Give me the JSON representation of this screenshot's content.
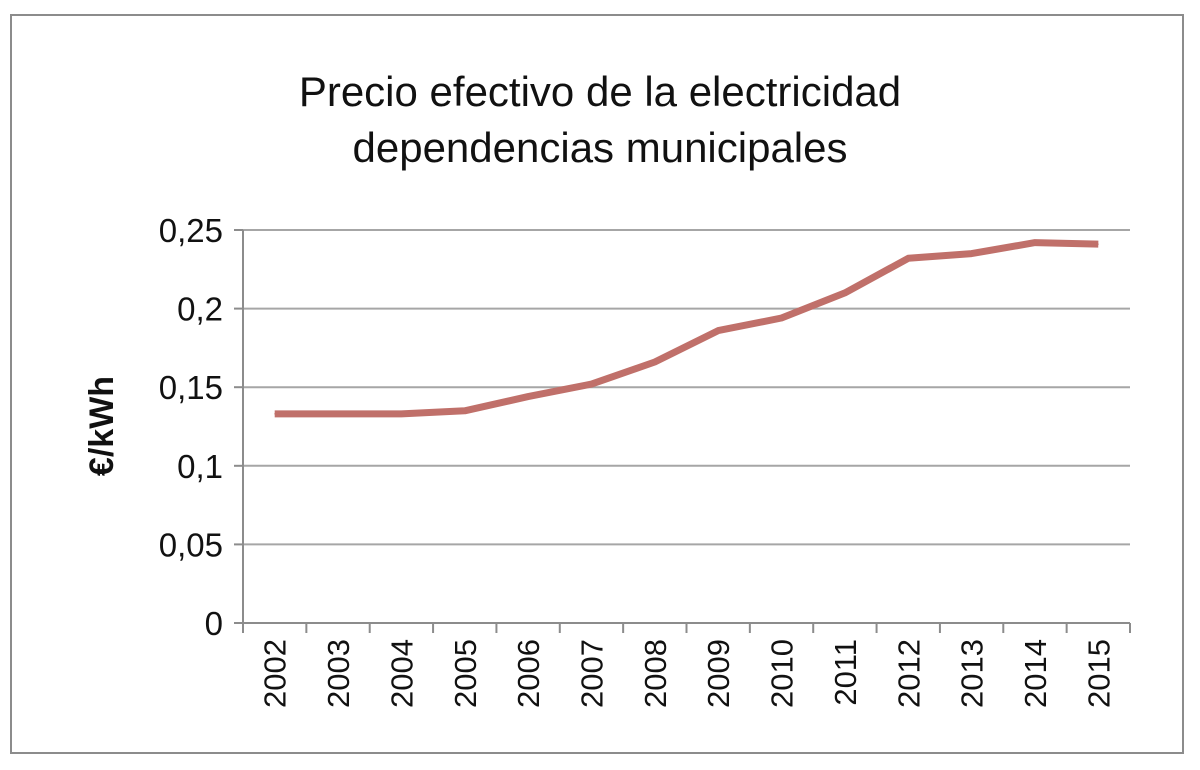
{
  "chart_data": {
    "type": "line",
    "title_line1": "Precio efectivo de la electricidad",
    "title_line2": "dependencias municipales",
    "xlabel": "",
    "ylabel": "€/kWh",
    "ylim": [
      0,
      0.25
    ],
    "y_ticks": [
      {
        "value": 0,
        "label": "0"
      },
      {
        "value": 0.05,
        "label": "0,05"
      },
      {
        "value": 0.1,
        "label": "0,1"
      },
      {
        "value": 0.15,
        "label": "0,15"
      },
      {
        "value": 0.2,
        "label": "0,2"
      },
      {
        "value": 0.25,
        "label": "0,25"
      }
    ],
    "categories": [
      "2002",
      "2003",
      "2004",
      "2005",
      "2006",
      "2007",
      "2008",
      "2009",
      "2010",
      "2011",
      "2012",
      "2013",
      "2014",
      "2015"
    ],
    "series": [
      {
        "values": [
          0.133,
          0.133,
          0.133,
          0.135,
          0.144,
          0.152,
          0.166,
          0.186,
          0.194,
          0.21,
          0.232,
          0.235,
          0.242,
          0.241
        ],
        "color": "#c0706a"
      }
    ],
    "grid": true,
    "gridline_color": "#a6a6a6"
  }
}
